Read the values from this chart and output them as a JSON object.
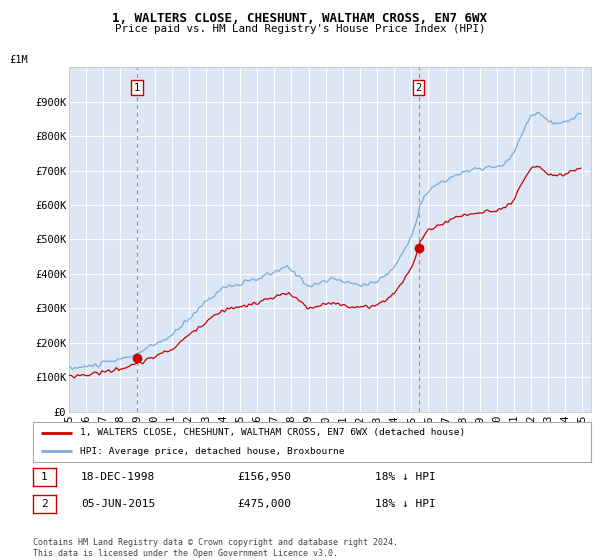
{
  "title1": "1, WALTERS CLOSE, CHESHUNT, WALTHAM CROSS, EN7 6WX",
  "title2": "Price paid vs. HM Land Registry's House Price Index (HPI)",
  "ylabel_top": "£1M",
  "yticks": [
    0,
    100000,
    200000,
    300000,
    400000,
    500000,
    600000,
    700000,
    800000,
    900000
  ],
  "ytick_labels": [
    "£0",
    "£100K",
    "£200K",
    "£300K",
    "£400K",
    "£500K",
    "£600K",
    "£700K",
    "£800K",
    "£900K"
  ],
  "ylim": [
    0,
    1000000
  ],
  "xlim_start": 1995.0,
  "xlim_end": 2025.5,
  "plot_bg_color": "#dce6f5",
  "grid_color": "#ffffff",
  "hpi_color": "#7aaddb",
  "price_color": "#cc0000",
  "vline_color": "#ff6666",
  "purchase1_x": 1998.96,
  "purchase1_y": 156950,
  "purchase2_x": 2015.43,
  "purchase2_y": 475000,
  "purchase1_label": "1",
  "purchase2_label": "2",
  "legend_line1": "1, WALTERS CLOSE, CHESHUNT, WALTHAM CROSS, EN7 6WX (detached house)",
  "legend_line2": "HPI: Average price, detached house, Broxbourne",
  "annotation1_date": "18-DEC-1998",
  "annotation1_price": "£156,950",
  "annotation1_hpi": "18% ↓ HPI",
  "annotation2_date": "05-JUN-2015",
  "annotation2_price": "£475,000",
  "annotation2_hpi": "18% ↓ HPI",
  "footer": "Contains HM Land Registry data © Crown copyright and database right 2024.\nThis data is licensed under the Open Government Licence v3.0.",
  "xtick_years": [
    1995,
    1996,
    1997,
    1998,
    1999,
    2000,
    2001,
    2002,
    2003,
    2004,
    2005,
    2006,
    2007,
    2008,
    2009,
    2010,
    2011,
    2012,
    2013,
    2014,
    2015,
    2016,
    2017,
    2018,
    2019,
    2020,
    2021,
    2022,
    2023,
    2024,
    2025
  ]
}
